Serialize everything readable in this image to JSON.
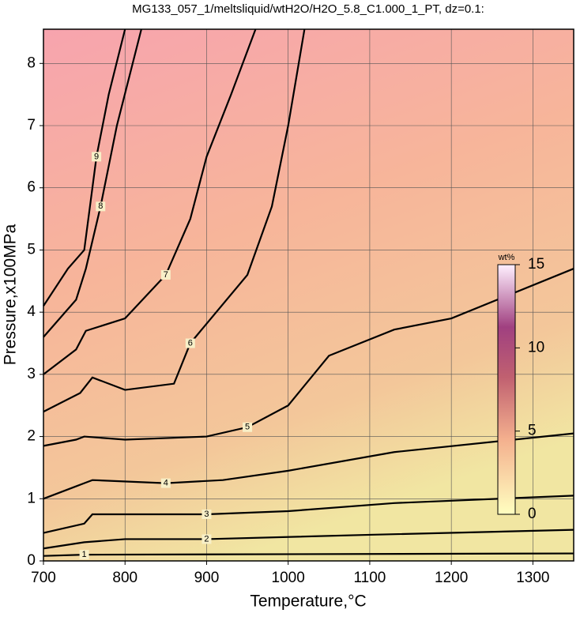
{
  "chart_data": {
    "type": "contour",
    "title": "MG133_057_1/meltsliquid/wtH2O/H2O_5.8_C1.000_1_PT, dz=0.1:",
    "x_label": "Temperature,°C",
    "y_label": "Pressure,x100MPa",
    "xlim": [
      700,
      1350
    ],
    "xticks": [
      700,
      800,
      900,
      1000,
      1100,
      1200,
      1300
    ],
    "ylim": [
      0,
      8.55
    ],
    "yticks": [
      0,
      1,
      2,
      3,
      4,
      5,
      6,
      7,
      8
    ],
    "grid": true,
    "colorbar": {
      "label": "wt%",
      "clim": [
        0,
        15
      ],
      "ticks": [
        0,
        5,
        10,
        15
      ]
    },
    "series": [
      {
        "name": "1",
        "color": "#000000",
        "x": [
          700,
          750,
          1350
        ],
        "values": [
          0.08,
          0.1,
          0.12
        ]
      },
      {
        "name": "2",
        "color": "#000000",
        "x": [
          700,
          750,
          800,
          900,
          1100,
          1350
        ],
        "values": [
          0.2,
          0.3,
          0.35,
          0.35,
          0.42,
          0.5
        ]
      },
      {
        "name": "3",
        "color": "#000000",
        "x": [
          700,
          750,
          760,
          900,
          1000,
          1130,
          1350
        ],
        "values": [
          0.45,
          0.6,
          0.75,
          0.75,
          0.8,
          0.93,
          1.05
        ]
      },
      {
        "name": "4",
        "color": "#000000",
        "x": [
          700,
          740,
          750,
          760,
          850,
          920,
          1000,
          1130,
          1350
        ],
        "values": [
          1.0,
          1.2,
          1.25,
          1.3,
          1.25,
          1.3,
          1.45,
          1.75,
          2.05
        ]
      },
      {
        "name": "5",
        "color": "#000000",
        "x": [
          700,
          740,
          750,
          800,
          900,
          950,
          1000,
          1050,
          1130,
          1200,
          1350
        ],
        "values": [
          1.85,
          1.95,
          2.0,
          1.95,
          2.0,
          2.15,
          2.5,
          3.3,
          3.72,
          3.9,
          4.7
        ]
      },
      {
        "name": "6",
        "color": "#000000",
        "x": [
          700,
          745,
          760,
          800,
          860,
          880,
          950,
          980,
          1000,
          1020
        ],
        "values": [
          2.4,
          2.7,
          2.95,
          2.75,
          2.85,
          3.5,
          4.6,
          5.7,
          7.0,
          8.55
        ]
      },
      {
        "name": "7",
        "color": "#000000",
        "x": [
          700,
          740,
          752,
          800,
          850,
          880,
          900,
          930,
          960
        ],
        "values": [
          3.0,
          3.4,
          3.7,
          3.9,
          4.6,
          5.5,
          6.5,
          7.5,
          8.55
        ]
      },
      {
        "name": "8",
        "color": "#000000",
        "x": [
          700,
          740,
          752,
          770,
          790,
          820
        ],
        "values": [
          3.6,
          4.2,
          4.7,
          5.7,
          7.0,
          8.55
        ]
      },
      {
        "name": "9",
        "color": "#000000",
        "x": [
          700,
          730,
          750,
          765,
          780,
          800
        ],
        "values": [
          4.1,
          4.7,
          5.0,
          6.5,
          7.5,
          8.55
        ]
      }
    ]
  }
}
